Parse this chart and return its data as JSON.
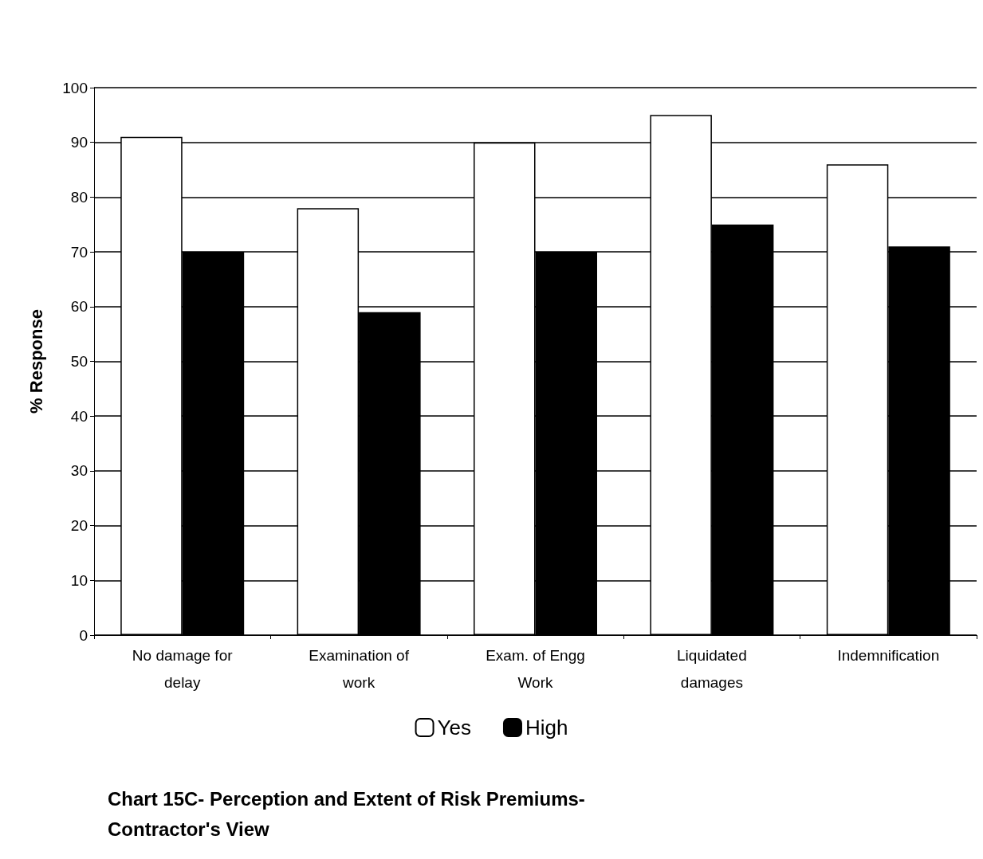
{
  "chart_data": {
    "type": "bar",
    "title": "Chart 15C- Perception and Extent of Risk Premiums-\nContractor's View",
    "ylabel": "% Response",
    "categories": [
      "No damage for\ndelay",
      "Examination of\nwork",
      "Exam. of Engg\nWork",
      "Liquidated\ndamages",
      "Indemnification"
    ],
    "series": [
      {
        "name": "Yes",
        "color": "#ffffff",
        "values": [
          91,
          78,
          90,
          95,
          86
        ]
      },
      {
        "name": "High",
        "color": "#000000",
        "values": [
          70,
          59,
          70,
          75,
          71
        ]
      }
    ],
    "ylim": [
      0,
      100
    ],
    "yticks": [
      0,
      10,
      20,
      30,
      40,
      50,
      60,
      70,
      80,
      90,
      100
    ],
    "grid": "y",
    "legend": "bottom"
  }
}
